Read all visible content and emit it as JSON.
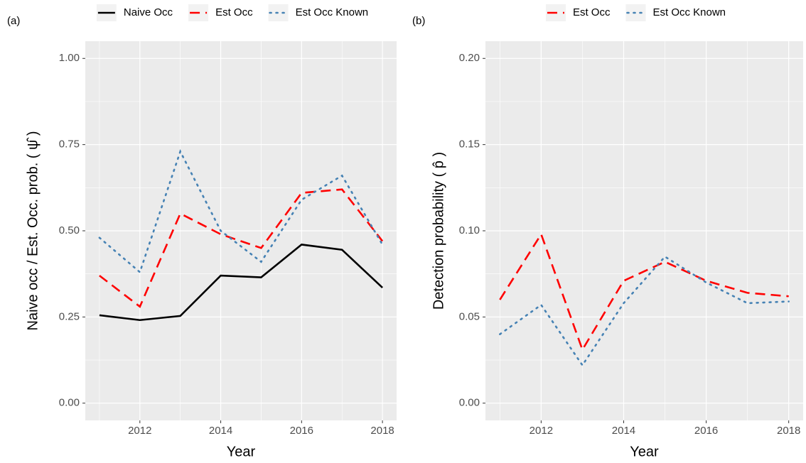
{
  "chart_data": [
    {
      "type": "line",
      "tag": "(a)",
      "x_label": "Year",
      "y_label": "Naive occ / Est. Occ. prob. ( ψ̂ )",
      "x": [
        2011,
        2012,
        2013,
        2014,
        2015,
        2016,
        2017,
        2018
      ],
      "series": [
        {
          "name": "Naive Occ",
          "color": "#000000",
          "dash": "solid",
          "values": [
            0.255,
            0.241,
            0.253,
            0.37,
            0.365,
            0.46,
            0.445,
            0.335
          ]
        },
        {
          "name": "Est Occ",
          "color": "#ff0000",
          "dash": "dashed",
          "values": [
            0.37,
            0.28,
            0.55,
            0.49,
            0.45,
            0.61,
            0.62,
            0.47
          ]
        },
        {
          "name": "Est Occ Known",
          "color": "#4682b4",
          "dash": "dotted",
          "values": [
            0.48,
            0.38,
            0.73,
            0.5,
            0.41,
            0.59,
            0.66,
            0.46
          ]
        }
      ],
      "xlim": [
        2010.65,
        2018.35
      ],
      "xticks": [
        2012,
        2014,
        2016,
        2018
      ],
      "ylim": [
        -0.05,
        1.05
      ],
      "yticks": [
        {
          "value": 0,
          "label": "0.00"
        },
        0.25,
        {
          "value": 0.5,
          "label": "0.50"
        },
        0.75,
        {
          "value": 1,
          "label": "1.00"
        }
      ],
      "grid": true,
      "legend": "top"
    },
    {
      "type": "line",
      "tag": "(b)",
      "x_label": "Year",
      "y_label": "Detection probability ( p̂ )",
      "x": [
        2011,
        2012,
        2013,
        2014,
        2015,
        2016,
        2017,
        2018
      ],
      "series": [
        {
          "name": "Est Occ",
          "color": "#ff0000",
          "dash": "dashed",
          "values": [
            0.06,
            0.098,
            0.031,
            0.071,
            0.082,
            0.071,
            0.064,
            0.062
          ]
        },
        {
          "name": "Est Occ Known",
          "color": "#4682b4",
          "dash": "dotted",
          "values": [
            0.04,
            0.057,
            0.022,
            0.058,
            0.085,
            0.07,
            0.058,
            0.059
          ]
        }
      ],
      "xlim": [
        2010.65,
        2018.35
      ],
      "xticks": [
        2012,
        2014,
        2016,
        2018
      ],
      "ylim": [
        -0.01,
        0.21
      ],
      "yticks": [
        {
          "value": 0,
          "label": "0.00"
        },
        0.05,
        {
          "value": 0.1,
          "label": "0.10"
        },
        0.15,
        {
          "value": 0.2,
          "label": "0.20"
        }
      ],
      "grid": true,
      "legend": "top"
    }
  ]
}
